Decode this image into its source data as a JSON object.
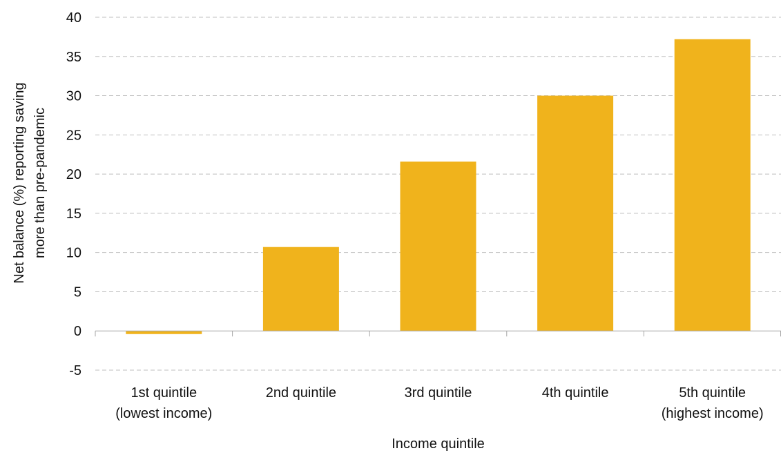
{
  "chart_data": {
    "type": "bar",
    "categories": [
      [
        "1st quintile",
        "(lowest income)"
      ],
      [
        "2nd quintile"
      ],
      [
        "3rd quintile"
      ],
      [
        "4th quintile"
      ],
      [
        "5th quintile",
        "(highest income)"
      ]
    ],
    "values": [
      -0.4,
      10.7,
      21.6,
      30.0,
      37.2
    ],
    "title": "",
    "xlabel": "Income quintile",
    "ylabel": [
      "Net balance (%) reporting saving",
      "more than pre-pandemic"
    ],
    "ylim": [
      -5,
      40
    ],
    "yticks": [
      "-5",
      "0",
      "5",
      "10",
      "15",
      "20",
      "25",
      "30",
      "35",
      "40"
    ],
    "grid": true,
    "legend": "none",
    "colors": {
      "bar": "#f0b31c"
    }
  }
}
